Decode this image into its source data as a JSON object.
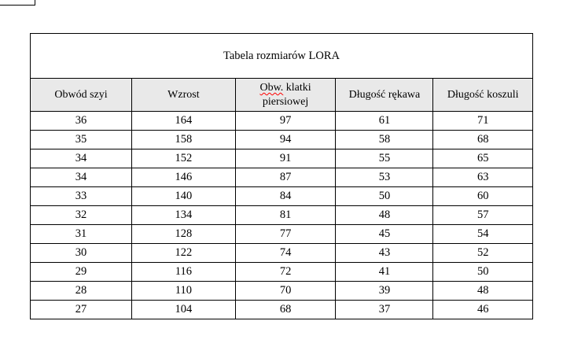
{
  "colors": {
    "header_bg": "#e9e9e9",
    "border": "#000000",
    "spellcheck_underline": "#ff0000",
    "page_bg": "#ffffff"
  },
  "table": {
    "title": "Tabela rozmiarów LORA",
    "columns": [
      {
        "label": "Obwód szyi"
      },
      {
        "label": "Wzrost"
      },
      {
        "label": "Obw. klatki piersiowej",
        "label_part_misspelled": "Obw.",
        "label_part_rest": " klatki piersiowej"
      },
      {
        "label": "Długość rękawa"
      },
      {
        "label": "Długość koszuli"
      }
    ],
    "rows": [
      [
        "36",
        "164",
        "97",
        "61",
        "71"
      ],
      [
        "35",
        "158",
        "94",
        "58",
        "68"
      ],
      [
        "34",
        "152",
        "91",
        "55",
        "65"
      ],
      [
        "34",
        "146",
        "87",
        "53",
        "63"
      ],
      [
        "33",
        "140",
        "84",
        "50",
        "60"
      ],
      [
        "32",
        "134",
        "81",
        "48",
        "57"
      ],
      [
        "31",
        "128",
        "77",
        "45",
        "54"
      ],
      [
        "30",
        "122",
        "74",
        "43",
        "52"
      ],
      [
        "29",
        "116",
        "72",
        "41",
        "50"
      ],
      [
        "28",
        "110",
        "70",
        "39",
        "48"
      ],
      [
        "27",
        "104",
        "68",
        "37",
        "46"
      ]
    ]
  }
}
